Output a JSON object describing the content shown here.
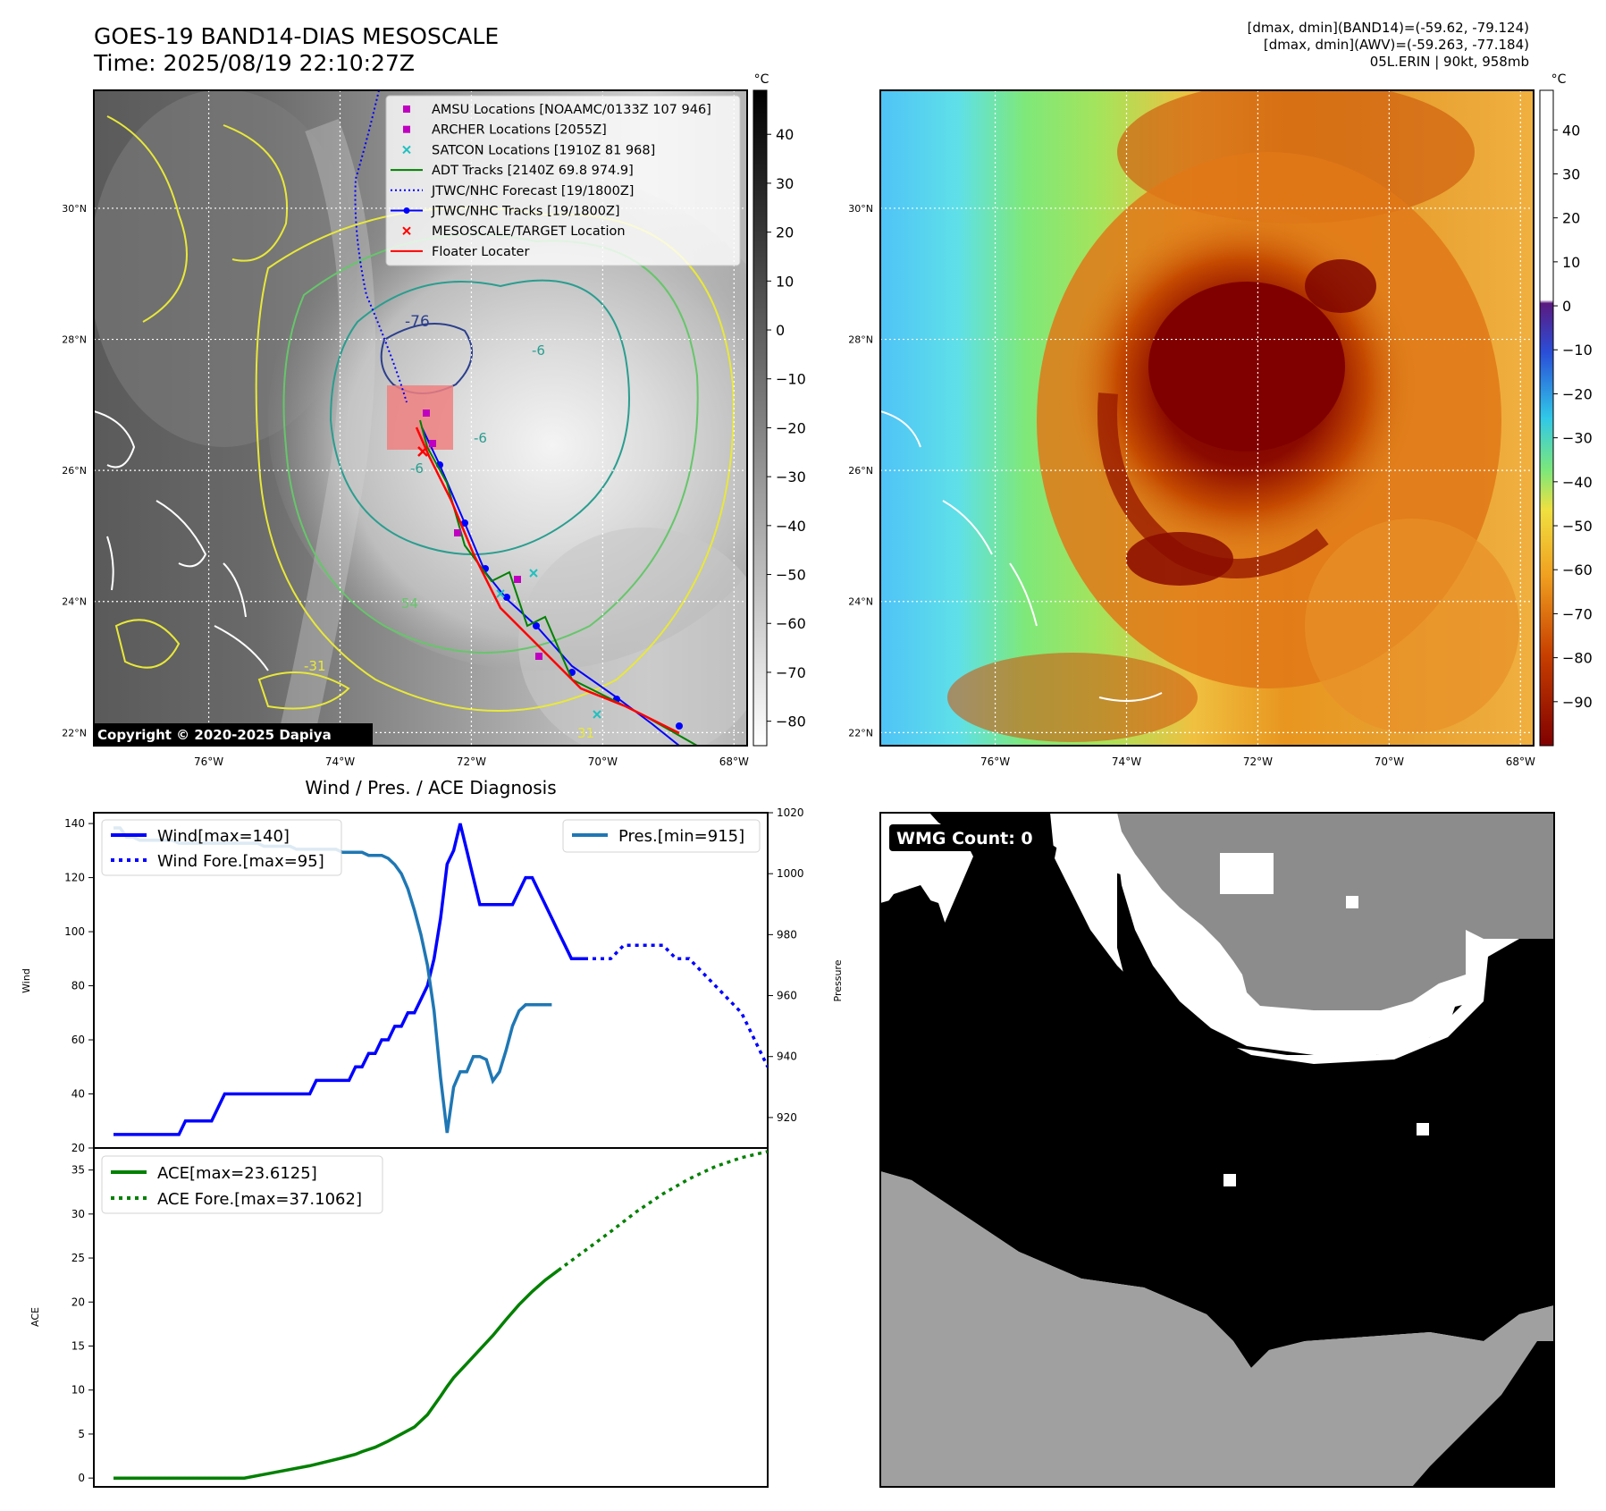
{
  "header": {
    "title_line1": "GOES-19 BAND14-DIAS MESOSCALE",
    "title_line2": "Time: 2025/08/19 22:10:27Z",
    "info_line1": "[dmax, dmin](BAND14)=(-59.62, -79.124)",
    "info_line2": "[dmax, dmin](AWV)=(-59.263, -77.184)",
    "info_line3": "05L.ERIN | 90kt, 958mb"
  },
  "map_axes": {
    "lat_labels": [
      "30°N",
      "28°N",
      "26°N",
      "24°N",
      "22°N"
    ],
    "lat_values": [
      30,
      28,
      26,
      24,
      22
    ],
    "lon_labels": [
      "76°W",
      "74°W",
      "72°W",
      "70°W",
      "68°W"
    ],
    "lon_values": [
      -76,
      -74,
      -72,
      -70,
      -68
    ],
    "lat_range": [
      21.8,
      31.8
    ],
    "lon_range": [
      -77.75,
      -67.8
    ]
  },
  "ir_panel": {
    "colorbar_unit": "°C",
    "colorbar_ticks": [
      "40",
      "30",
      "20",
      "10",
      "0",
      "−10",
      "−20",
      "−30",
      "−40",
      "−50",
      "−60",
      "−70",
      "−80"
    ],
    "colorbar_tick_values": [
      40,
      30,
      20,
      10,
      0,
      -10,
      -20,
      -30,
      -40,
      -50,
      -60,
      -70,
      -80
    ],
    "colorbar_range": [
      -85,
      49
    ],
    "copyright": "Copyright © 2020-2025 Dapiya",
    "contour_labels": [
      "-76",
      "-6",
      "-6",
      "-6",
      "54",
      "-31",
      "31"
    ],
    "legend": [
      {
        "label": "AMSU Locations [NOAAMC/0133Z 107 946]",
        "marker": "square",
        "color": "#c000c0"
      },
      {
        "label": "ARCHER Locations [2055Z]",
        "marker": "square",
        "color": "#c000c0"
      },
      {
        "label": "SATCON Locations [1910Z 81 968]",
        "marker": "x",
        "color": "#20c0c0"
      },
      {
        "label": "ADT Tracks [2140Z 69.8 974.9]",
        "marker": "line",
        "color": "#008000"
      },
      {
        "label": "JTWC/NHC Forecast [19/1800Z]",
        "marker": "dotted",
        "color": "#0000ff"
      },
      {
        "label": "JTWC/NHC Tracks [19/1800Z]",
        "marker": "line-dot",
        "color": "#0000ff"
      },
      {
        "label": "MESOSCALE/TARGET Location",
        "marker": "x",
        "color": "#ff0000"
      },
      {
        "label": "Floater Locater",
        "marker": "line",
        "color": "#ff0000"
      }
    ]
  },
  "wv_panel": {
    "colorbar_unit": "°C",
    "colorbar_ticks": [
      "40",
      "30",
      "20",
      "10",
      "0",
      "−10",
      "−20",
      "−30",
      "−40",
      "−50",
      "−60",
      "−70",
      "−80",
      "−90"
    ],
    "colorbar_tick_values": [
      40,
      30,
      20,
      10,
      0,
      -10,
      -20,
      -30,
      -40,
      -50,
      -60,
      -70,
      -80,
      -90
    ],
    "colorbar_range": [
      -100,
      49
    ]
  },
  "diag": {
    "title": "Wind / Pres. / ACE Diagnosis",
    "wind_ylabel": "Wind",
    "pres_ylabel": "Pressure",
    "ace_ylabel": "ACE",
    "wind_ticks": [
      "140",
      "120",
      "100",
      "80",
      "60",
      "40",
      "20"
    ],
    "pres_ticks": [
      "1020",
      "1000",
      "980",
      "960",
      "940",
      "920"
    ],
    "ace_ticks": [
      "35",
      "30",
      "25",
      "20",
      "15",
      "10",
      "5",
      "0"
    ],
    "legend_wind": "Wind[max=140]",
    "legend_wind_fore": "Wind Fore.[max=95]",
    "legend_pres": "Pres.[min=915]",
    "legend_ace": "ACE[max=23.6125]",
    "legend_ace_fore": "ACE Fore.[max=37.1062]"
  },
  "wmg_panel": {
    "label": "WMG Count: 0"
  },
  "chart_data": [
    {
      "type": "line",
      "title": "Wind / Pres. / ACE Diagnosis",
      "ylabel": "Wind",
      "ylim": [
        20,
        144
      ],
      "xlim": [
        -3,
        100
      ],
      "series": [
        {
          "name": "Wind[max=140]",
          "color": "#0000ff",
          "style": "solid",
          "x": [
            0,
            1,
            2,
            3,
            4,
            5,
            6,
            7,
            8,
            9,
            10,
            11,
            12,
            13,
            14,
            15,
            16,
            17,
            18,
            19,
            20,
            21,
            22,
            23,
            24,
            25,
            26,
            27,
            28,
            29,
            30,
            31,
            32,
            33,
            34,
            35,
            36,
            37,
            38,
            39,
            40,
            41,
            42,
            43,
            44,
            45,
            46,
            47,
            48,
            49,
            50,
            51,
            52,
            53,
            54,
            55,
            56,
            57,
            58,
            59,
            60,
            61,
            62,
            63,
            64
          ],
          "values": [
            25,
            25,
            25,
            25,
            25,
            25,
            25,
            25,
            25,
            25,
            25,
            30,
            30,
            30,
            30,
            30,
            35,
            40,
            40,
            40,
            40,
            40,
            40,
            40,
            40,
            40,
            40,
            40,
            40,
            40,
            40,
            45,
            45,
            45,
            45,
            45,
            45,
            50,
            50,
            55,
            55,
            60,
            60,
            65,
            65,
            70,
            70,
            75,
            80,
            90,
            105,
            125,
            130,
            140,
            130,
            120,
            110,
            110,
            110,
            110,
            110,
            110,
            115,
            120,
            120
          ],
          "extra_x": [
            65,
            66,
            67,
            68,
            69,
            70,
            71,
            72
          ],
          "extra_values": [
            115,
            110,
            105,
            100,
            95,
            90,
            90,
            90
          ]
        },
        {
          "name": "Wind Fore.[max=95]",
          "color": "#0000ff",
          "style": "dotted",
          "x": [
            72,
            74,
            76,
            78,
            80,
            82,
            84,
            86,
            88,
            90,
            92,
            94,
            96,
            98,
            100
          ],
          "values": [
            90,
            90,
            90,
            95,
            95,
            95,
            95,
            90,
            90,
            85,
            80,
            75,
            70,
            60,
            50
          ]
        }
      ]
    },
    {
      "type": "line",
      "ylabel": "Pressure",
      "ylim": [
        910,
        1020
      ],
      "series": [
        {
          "name": "Pres.[min=915]",
          "color": "#1f77b4",
          "style": "solid",
          "x": [
            0,
            1,
            2,
            3,
            4,
            5,
            6,
            7,
            8,
            9,
            10,
            11,
            12,
            13,
            14,
            15,
            16,
            17,
            18,
            19,
            20,
            21,
            22,
            23,
            24,
            25,
            26,
            27,
            28,
            29,
            30,
            31,
            32,
            33,
            34,
            35,
            36,
            37,
            38,
            39,
            40,
            41,
            42,
            43,
            44,
            45,
            46,
            47,
            48,
            49,
            50,
            51,
            52,
            53,
            54,
            55,
            56,
            57,
            58,
            59,
            60,
            61,
            62,
            63,
            64,
            65,
            66,
            67
          ],
          "values": [
            1015,
            1015,
            1012,
            1012,
            1011,
            1011,
            1011,
            1011,
            1011,
            1011,
            1010,
            1010,
            1010,
            1010,
            1010,
            1010,
            1010,
            1010,
            1010,
            1010,
            1010,
            1010,
            1010,
            1009,
            1009,
            1009,
            1009,
            1009,
            1008,
            1008,
            1008,
            1008,
            1008,
            1008,
            1008,
            1007,
            1007,
            1007,
            1007,
            1006,
            1006,
            1006,
            1005,
            1003,
            1000,
            995,
            988,
            980,
            970,
            955,
            933,
            915,
            930,
            935,
            935,
            940,
            940,
            939,
            932,
            935,
            942,
            950,
            955,
            957,
            957,
            957,
            957,
            957
          ]
        }
      ]
    },
    {
      "type": "line",
      "ylabel": "ACE",
      "ylim": [
        -1,
        37.5
      ],
      "series": [
        {
          "name": "ACE[max=23.6125]",
          "color": "#008000",
          "style": "solid",
          "x": [
            0,
            5,
            10,
            15,
            20,
            25,
            30,
            35,
            36,
            37,
            38,
            40,
            42,
            44,
            46,
            48,
            50,
            51,
            52,
            53,
            54,
            55,
            56,
            57,
            58,
            60,
            62,
            64,
            66,
            68
          ],
          "values": [
            0,
            0,
            0,
            0,
            0,
            0.7,
            1.4,
            2.3,
            2.5,
            2.7,
            3.0,
            3.5,
            4.2,
            5.0,
            5.8,
            7.2,
            9.3,
            10.4,
            11.4,
            12.2,
            13.0,
            13.8,
            14.6,
            15.4,
            16.2,
            18.0,
            19.7,
            21.2,
            22.5,
            23.6
          ]
        },
        {
          "name": "ACE Fore.[max=37.1062]",
          "color": "#008000",
          "style": "dotted",
          "x": [
            68,
            72,
            76,
            80,
            84,
            88,
            92,
            96,
            100
          ],
          "values": [
            23.6,
            25.8,
            28.0,
            30.3,
            32.3,
            34.0,
            35.4,
            36.4,
            37.1
          ]
        }
      ]
    }
  ]
}
